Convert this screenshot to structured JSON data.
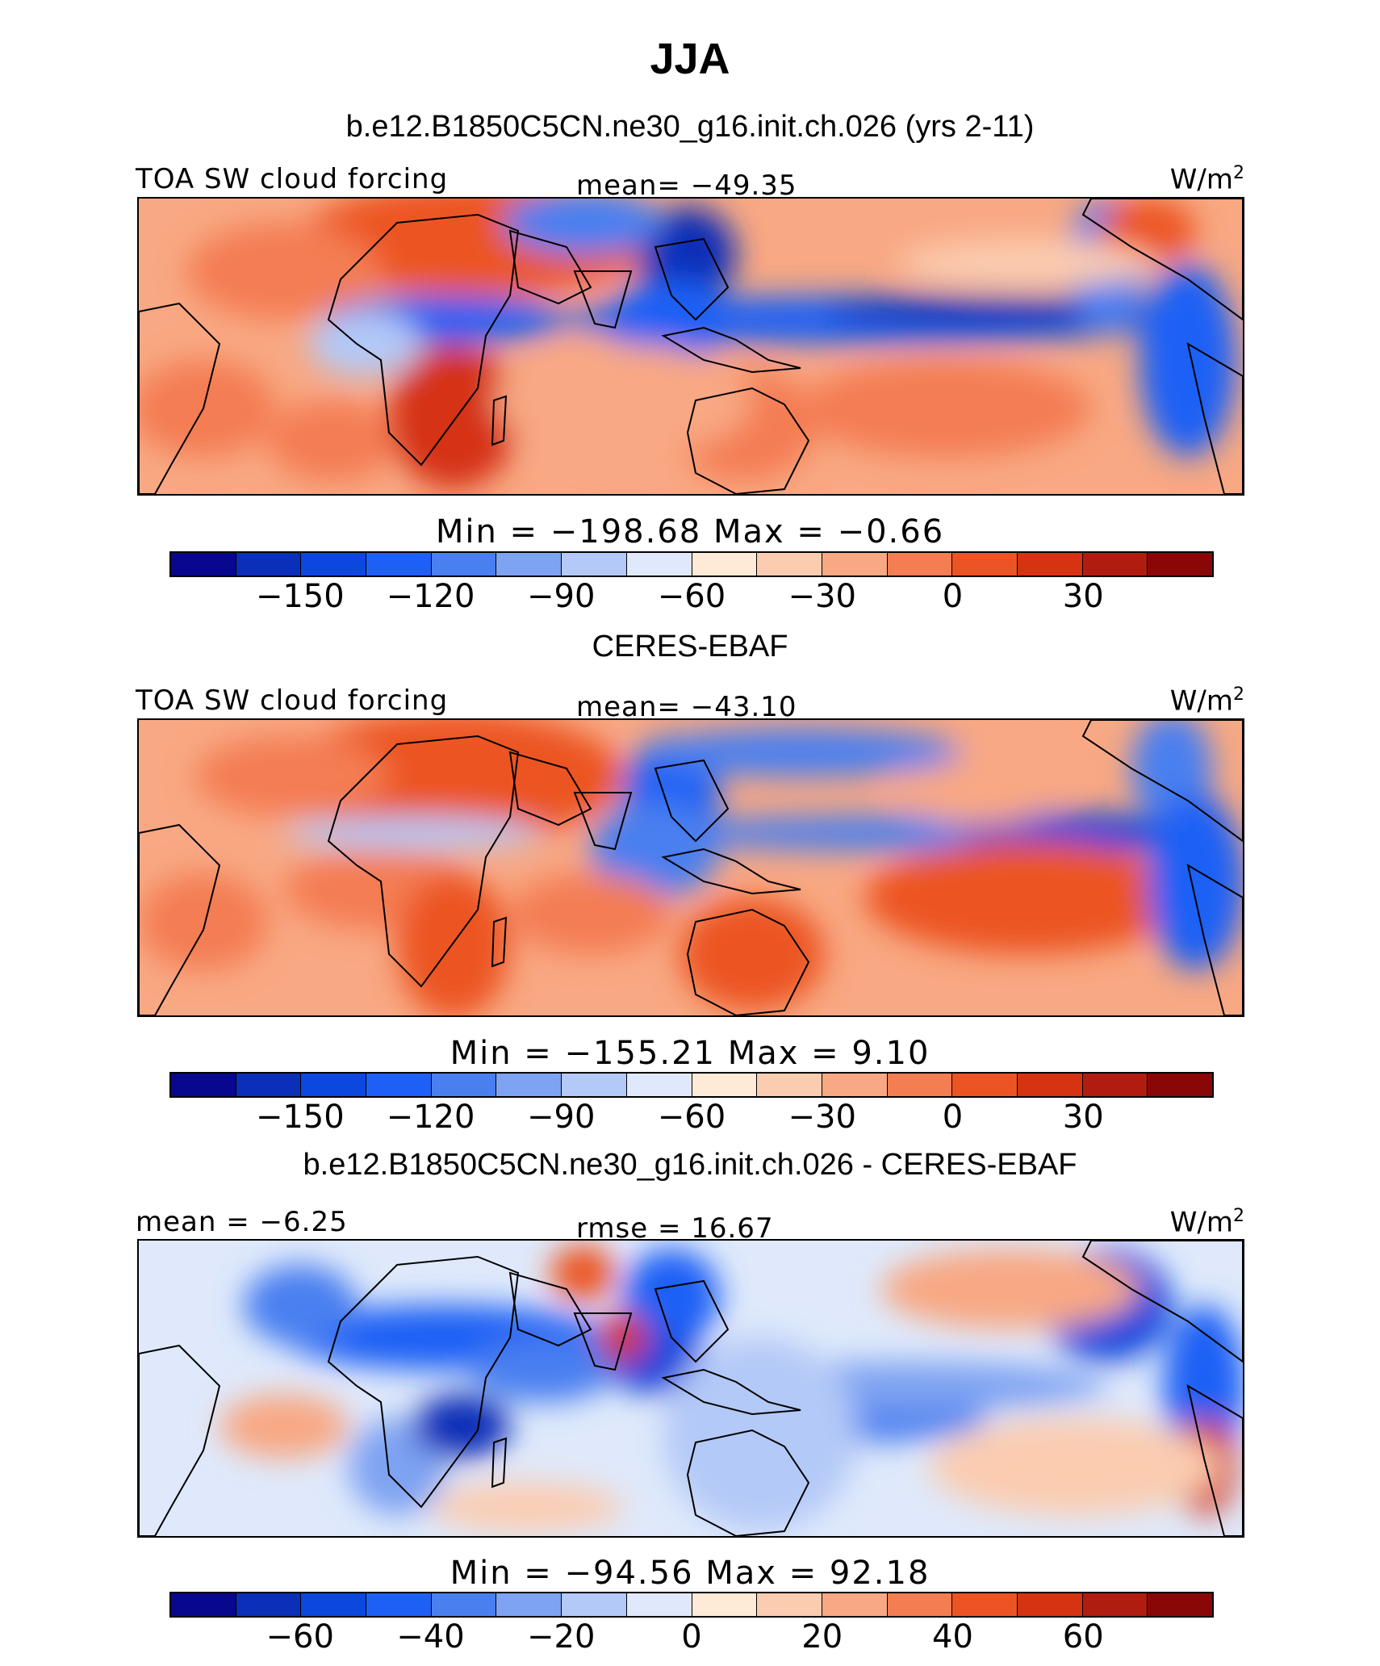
{
  "figure": {
    "title": "JJA",
    "colors": [
      "#08088e",
      "#0b2fb8",
      "#0c47de",
      "#1e60f5",
      "#4a7ff0",
      "#7ea3f2",
      "#b3c9f7",
      "#dfe9fb",
      "#fdebd7",
      "#fbccb0",
      "#f8a883",
      "#f47d52",
      "#ec5424",
      "#d53312",
      "#b01d10",
      "#8a0707"
    ]
  },
  "panels": [
    {
      "title": "b.e12.B1850C5CN.ne30_g16.init.ch.026 (yrs 2-11)",
      "left_label": "TOA SW cloud forcing",
      "center_label": "mean=  −49.35",
      "unit": "W/m",
      "unit_sup": "2",
      "minmax": "Min  =  −198.68  Max  =    −0.66",
      "ticks": [
        "−150",
        "−120",
        "−90",
        "−60",
        "−30",
        "0",
        "30"
      ]
    },
    {
      "title": "CERES-EBAF",
      "left_label": "TOA SW cloud forcing",
      "center_label": "mean=  −43.10",
      "unit": "W/m",
      "unit_sup": "2",
      "minmax": "Min  =  −155.21  Max  =     9.10",
      "ticks": [
        "−150",
        "−120",
        "−90",
        "−60",
        "−30",
        "0",
        "30"
      ]
    },
    {
      "title": "b.e12.B1850C5CN.ne30_g16.init.ch.026 - CERES-EBAF",
      "left_label": "mean  =   −6.25",
      "center_label": "rmse  =   16.67",
      "unit": "W/m",
      "unit_sup": "2",
      "minmax": "Min  =  −94.56  Max  =    92.18",
      "ticks": [
        "−60",
        "−40",
        "−20",
        "0",
        "20",
        "40",
        "60"
      ]
    }
  ],
  "chart_data": [
    {
      "type": "heatmap",
      "title": "b.e12.B1850C5CN.ne30_g16.init.ch.026 (yrs 2-11)",
      "variable": "TOA SW cloud forcing",
      "unit": "W/m2",
      "season": "JJA",
      "mean": -49.35,
      "min": -198.68,
      "max": -0.66,
      "contour_levels": [
        -165,
        -150,
        -135,
        -120,
        -105,
        -90,
        -75,
        -60,
        -45,
        -30,
        -15,
        0,
        15,
        30,
        45
      ],
      "colorbar_ticks": [
        -150,
        -120,
        -90,
        -60,
        -30,
        0,
        30
      ]
    },
    {
      "type": "heatmap",
      "title": "CERES-EBAF",
      "variable": "TOA SW cloud forcing",
      "unit": "W/m2",
      "season": "JJA",
      "mean": -43.1,
      "min": -155.21,
      "max": 9.1,
      "contour_levels": [
        -165,
        -150,
        -135,
        -120,
        -105,
        -90,
        -75,
        -60,
        -45,
        -30,
        -15,
        0,
        15,
        30,
        45
      ],
      "colorbar_ticks": [
        -150,
        -120,
        -90,
        -60,
        -30,
        0,
        30
      ]
    },
    {
      "type": "heatmap",
      "title": "b.e12.B1850C5CN.ne30_g16.init.ch.026 - CERES-EBAF",
      "unit": "W/m2",
      "season": "JJA",
      "mean": -6.25,
      "rmse": 16.67,
      "min": -94.56,
      "max": 92.18,
      "contour_levels": [
        -70,
        -60,
        -50,
        -40,
        -30,
        -20,
        -10,
        0,
        10,
        20,
        30,
        40,
        50,
        60,
        70
      ],
      "colorbar_ticks": [
        -60,
        -40,
        -20,
        0,
        20,
        40,
        60
      ]
    }
  ]
}
